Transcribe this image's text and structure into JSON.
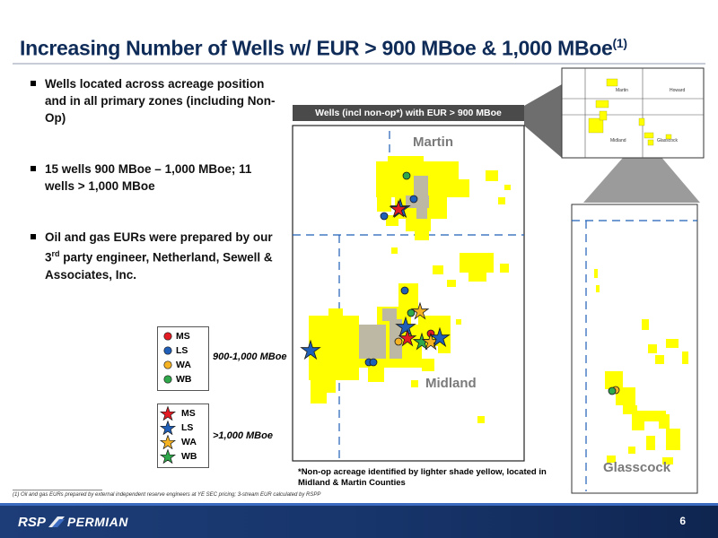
{
  "slide": {
    "title": "Increasing Number of Wells w/ EUR > 900 MBoe & 1,000 MBoe",
    "title_superscript": "(1)",
    "page_number": "6"
  },
  "bullets": [
    {
      "text": "Wells located across acreage position and in all primary zones (including Non-Op)"
    },
    {
      "text": "15 wells 900 MBoe – 1,000 MBoe; 11 wells > 1,000 MBoe"
    },
    {
      "text_before": "Oil and gas EURs were prepared by our 3",
      "superscript": "rd",
      "text_after": " party engineer, Netherland, Sewell & Associates, Inc."
    }
  ],
  "legend": {
    "circles_label": "900-1,000 MBoe",
    "stars_label": ">1,000 MBoe",
    "items": [
      {
        "label": "MS",
        "color": "#e31b23"
      },
      {
        "label": "LS",
        "color": "#1f5fb8"
      },
      {
        "label": "WA",
        "color": "#f5b324"
      },
      {
        "label": "WB",
        "color": "#2ea84a"
      }
    ]
  },
  "map": {
    "header": "Wells (incl non-op*) with EUR > 900 MBoe",
    "counties": {
      "martin": "Martin",
      "midland": "Midland",
      "glasscock": "Glasscock"
    },
    "inset_labels": {
      "martin": "Martin",
      "howard": "Howard",
      "midland": "Midland",
      "glasscock": "Glasscock"
    },
    "acreage_color": "#ffff00",
    "nonop_color": "#bdb8a4",
    "note": "*Non-op acreage identified by lighter shade yellow, located in Midland & Martin Counties"
  },
  "footnote": "(1) Oil and gas EURs prepared by external independent reserve engineers at YE SEC pricing; 3-stream EUR calculated by RSPP",
  "footer": {
    "logo_rsp": "RSP",
    "logo_permian": "PERMIAN"
  }
}
